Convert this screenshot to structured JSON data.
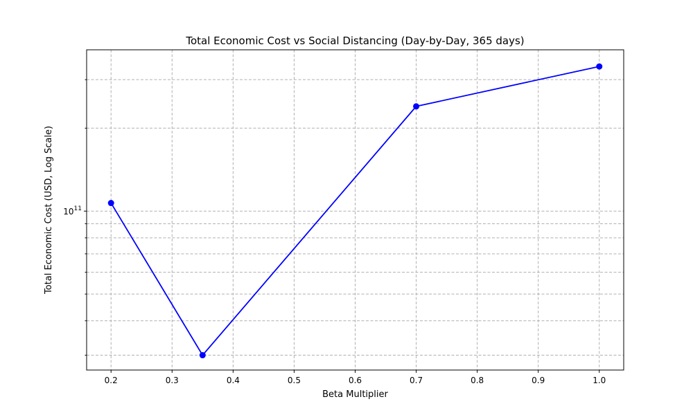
{
  "chart_data": {
    "type": "line",
    "title": "Total Economic Cost vs Social Distancing (Day-by-Day, 365 days)",
    "xlabel": "Beta Multiplier",
    "ylabel": "Total Economic Cost (USD, Log Scale)",
    "x": [
      0.2,
      0.35,
      0.7,
      1.0
    ],
    "series": [
      {
        "values": [
          107000000000,
          30000000000,
          240000000000,
          335000000000
        ],
        "color": "#0000ff",
        "marker": "circle"
      }
    ],
    "xlim": [
      0.16,
      1.04
    ],
    "ylim": [
      26500000000,
      385000000000
    ],
    "yscale": "log",
    "xticks": [
      0.2,
      0.3,
      0.4,
      0.5,
      0.6,
      0.7,
      0.8,
      0.9,
      1.0
    ],
    "xtick_labels": [
      "0.2",
      "0.3",
      "0.4",
      "0.5",
      "0.6",
      "0.7",
      "0.8",
      "0.9",
      "1.0"
    ],
    "ytick_major": [
      100000000000
    ],
    "ytick_major_labels": [
      {
        "base": "10",
        "exp": "11"
      }
    ],
    "ytick_minor": [
      30000000000,
      40000000000,
      50000000000,
      60000000000,
      70000000000,
      80000000000,
      90000000000,
      200000000000,
      300000000000
    ],
    "grid": true,
    "grid_style": "dashed",
    "colors": {
      "line": "#0000ff",
      "grid": "#b0b0b0",
      "axis": "#000000"
    }
  }
}
